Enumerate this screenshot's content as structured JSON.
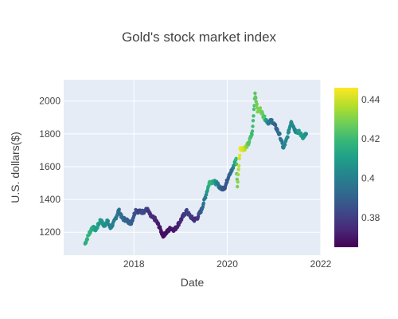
{
  "chart_data": {
    "type": "scatter",
    "title": "Gold's stock market index",
    "xlabel": "Date",
    "ylabel": "U.S. dollars($)",
    "xlim": [
      "2016-07-01",
      "2022-01-01"
    ],
    "ylim": [
      1060,
      2130
    ],
    "x_ticks": [
      "2018-01-01",
      "2020-01-01",
      "2022-01-01"
    ],
    "x_tick_labels": [
      "2018",
      "2020",
      "2022"
    ],
    "y_ticks": [
      1200,
      1400,
      1600,
      1800,
      2000
    ],
    "y_tick_labels": [
      "1200",
      "1400",
      "1600",
      "1800",
      "2000"
    ],
    "colorbar": {
      "colorscale": "Viridis",
      "range": [
        0.365,
        0.446
      ],
      "ticks": [
        0.38,
        0.4,
        0.42,
        0.44
      ],
      "tick_labels": [
        "0.38",
        "0.4",
        "0.42",
        "0.44"
      ]
    },
    "grid": true,
    "series": [
      {
        "points": [
          [
            "2016-12-15",
            1130,
            0.415
          ],
          [
            "2017-01-15",
            1190,
            0.418
          ],
          [
            "2017-02-10",
            1230,
            0.415
          ],
          [
            "2017-03-10",
            1215,
            0.41
          ],
          [
            "2017-04-15",
            1275,
            0.41
          ],
          [
            "2017-05-15",
            1235,
            0.405
          ],
          [
            "2017-06-05",
            1275,
            0.405
          ],
          [
            "2017-07-01",
            1225,
            0.4
          ],
          [
            "2017-08-01",
            1265,
            0.4
          ],
          [
            "2017-09-05",
            1335,
            0.395
          ],
          [
            "2017-10-01",
            1285,
            0.395
          ],
          [
            "2017-11-01",
            1275,
            0.39
          ],
          [
            "2017-12-10",
            1255,
            0.39
          ],
          [
            "2018-01-15",
            1335,
            0.385
          ],
          [
            "2018-02-10",
            1325,
            0.38
          ],
          [
            "2018-03-15",
            1325,
            0.385
          ],
          [
            "2018-04-15",
            1340,
            0.38
          ],
          [
            "2018-05-15",
            1295,
            0.375
          ],
          [
            "2018-06-15",
            1280,
            0.375
          ],
          [
            "2018-07-15",
            1240,
            0.37
          ],
          [
            "2018-08-15",
            1180,
            0.368
          ],
          [
            "2018-09-15",
            1200,
            0.368
          ],
          [
            "2018-10-15",
            1225,
            0.37
          ],
          [
            "2018-11-15",
            1215,
            0.37
          ],
          [
            "2018-12-15",
            1250,
            0.372
          ],
          [
            "2019-01-15",
            1290,
            0.375
          ],
          [
            "2019-02-15",
            1330,
            0.38
          ],
          [
            "2019-03-15",
            1300,
            0.38
          ],
          [
            "2019-04-15",
            1275,
            0.375
          ],
          [
            "2019-05-10",
            1285,
            0.375
          ],
          [
            "2019-06-15",
            1340,
            0.39
          ],
          [
            "2019-07-15",
            1420,
            0.4
          ],
          [
            "2019-08-15",
            1505,
            0.42
          ],
          [
            "2019-09-15",
            1510,
            0.415
          ],
          [
            "2019-10-15",
            1495,
            0.4
          ],
          [
            "2019-11-15",
            1465,
            0.39
          ],
          [
            "2019-12-15",
            1475,
            0.385
          ],
          [
            "2020-01-15",
            1555,
            0.39
          ],
          [
            "2020-02-10",
            1580,
            0.395
          ],
          [
            "2020-03-10",
            1650,
            0.42
          ],
          [
            "2020-03-20",
            1480,
            0.43
          ],
          [
            "2020-04-10",
            1710,
            0.445
          ],
          [
            "2020-05-15",
            1710,
            0.44
          ],
          [
            "2020-06-15",
            1740,
            0.425
          ],
          [
            "2020-07-15",
            1810,
            0.42
          ],
          [
            "2020-08-05",
            2050,
            0.425
          ],
          [
            "2020-08-25",
            1940,
            0.43
          ],
          [
            "2020-09-15",
            1950,
            0.43
          ],
          [
            "2020-10-15",
            1900,
            0.425
          ],
          [
            "2020-11-15",
            1870,
            0.4
          ],
          [
            "2020-12-15",
            1880,
            0.395
          ],
          [
            "2021-01-15",
            1840,
            0.39
          ],
          [
            "2021-02-15",
            1790,
            0.395
          ],
          [
            "2021-03-15",
            1710,
            0.4
          ],
          [
            "2021-04-15",
            1780,
            0.405
          ],
          [
            "2021-05-15",
            1880,
            0.405
          ],
          [
            "2021-06-15",
            1820,
            0.4
          ],
          [
            "2021-07-15",
            1810,
            0.41
          ],
          [
            "2021-08-15",
            1780,
            0.41
          ],
          [
            "2021-09-10",
            1800,
            0.405
          ]
        ]
      }
    ]
  }
}
